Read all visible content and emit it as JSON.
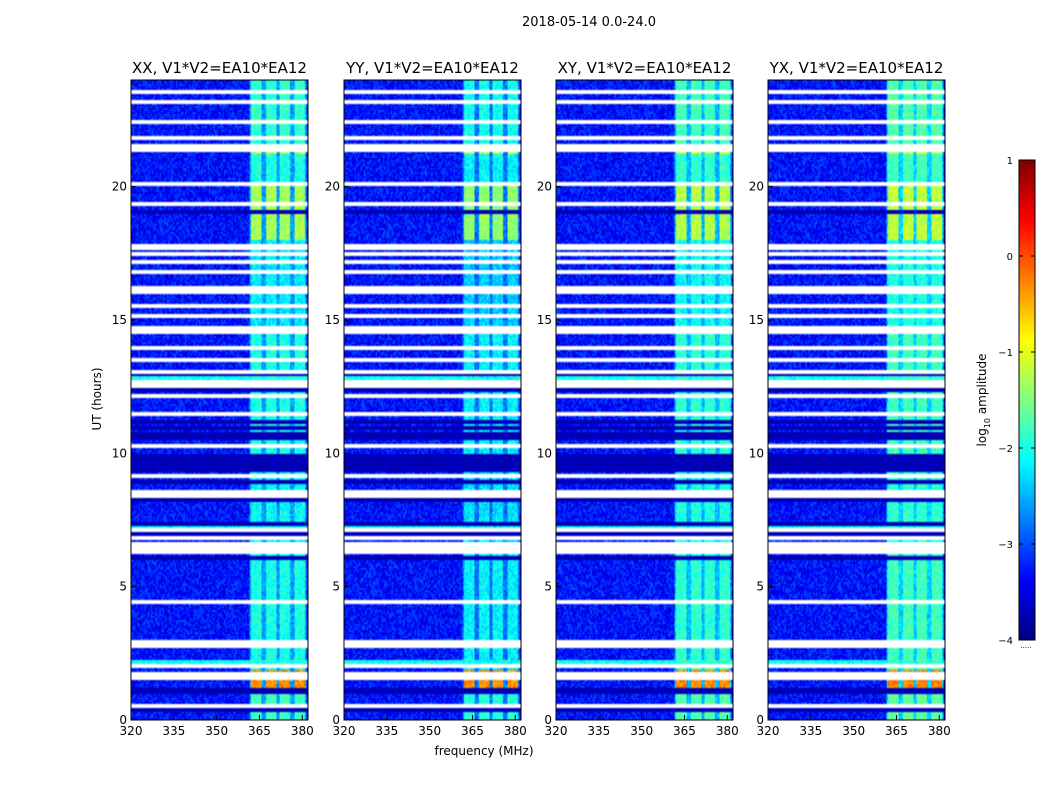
{
  "figure": {
    "suptitle": "2018-05-14 0.0-24.0",
    "xlabel": "frequency (MHz)",
    "ylabel": "UT (hours)",
    "colorbar_label": "log",
    "colorbar_sub": "10",
    "colorbar_label_tail": " amplitude",
    "colorbar_ticks": [
      "1",
      "0",
      "−1",
      "−2",
      "−3",
      "−4"
    ],
    "colorbar_under_marker": "....."
  },
  "chart_data": {
    "type": "heatmap",
    "colormap": "jet",
    "colormap_stops": [
      "#00007f",
      "#0000ff",
      "#007fff",
      "#00ffff",
      "#7fff7f",
      "#ffff00",
      "#ff7f00",
      "#ff0000",
      "#7f0000"
    ],
    "color_range": [
      -4,
      1
    ],
    "background_level": -3.3,
    "xlim": [
      320,
      382
    ],
    "ylim": [
      0,
      24
    ],
    "x_ticks": [
      "320",
      "335",
      "350",
      "365",
      "380"
    ],
    "x_tick_values": [
      320,
      335,
      350,
      365,
      380
    ],
    "y_ticks": [
      "0",
      "5",
      "10",
      "15",
      "20"
    ],
    "y_tick_values": [
      0,
      5,
      10,
      15,
      20
    ],
    "panels": [
      {
        "title": "XX, V1*V2=EA10*EA12",
        "intensity": 1.0
      },
      {
        "title": "YY, V1*V2=EA10*EA12",
        "intensity": 1.08
      },
      {
        "title": "XY, V1*V2=EA10*EA12",
        "intensity": 0.95
      },
      {
        "title": "YX, V1*V2=EA10*EA12",
        "intensity": 0.9
      }
    ],
    "rfi_band_mhz": [
      361.5,
      381.5
    ],
    "rfi_channels_mhz": [
      364,
      369,
      374,
      379
    ],
    "rfi_strength_by_hour": [
      {
        "from": 0.0,
        "to": 1.0,
        "level": -1.8
      },
      {
        "from": 1.0,
        "to": 1.9,
        "level": -0.3
      },
      {
        "from": 1.9,
        "to": 6.2,
        "level": -2.0
      },
      {
        "from": 6.2,
        "to": 9.5,
        "level": -2.1
      },
      {
        "from": 9.5,
        "to": 10.0,
        "level": -1.4
      },
      {
        "from": 10.0,
        "to": 14.5,
        "level": -2.0
      },
      {
        "from": 14.5,
        "to": 14.8,
        "level": -1.4
      },
      {
        "from": 14.8,
        "to": 18.0,
        "level": -2.2
      },
      {
        "from": 18.0,
        "to": 20.2,
        "level": -1.3
      },
      {
        "from": 20.2,
        "to": 21.2,
        "level": -2.0
      },
      {
        "from": 21.2,
        "to": 21.5,
        "level": -1.2
      },
      {
        "from": 21.5,
        "to": 24.0,
        "level": -1.9
      }
    ],
    "flagged_rows_hours": [
      0.55,
      1.55,
      1.72,
      2.02,
      2.75,
      2.92,
      4.4,
      6.3,
      6.45,
      6.6,
      6.85,
      7.1,
      8.4,
      8.55,
      9.15,
      10.3,
      11.5,
      12.15,
      12.5,
      12.7,
      13.05,
      13.5,
      13.95,
      14.55,
      14.7,
      15.15,
      15.5,
      16.05,
      16.2,
      16.8,
      17.2,
      17.5,
      17.7,
      17.8,
      19.35,
      20.1,
      21.35,
      21.55,
      21.85,
      22.4,
      23.2,
      23.55
    ],
    "dark_rows_hours": [
      0.4,
      1.05,
      1.15,
      6.1,
      6.95,
      7.35,
      8.25,
      8.95,
      9.35,
      9.45,
      9.6,
      9.75,
      9.9,
      10.55,
      10.75,
      10.95,
      11.15,
      12.35,
      12.95,
      19.05
    ],
    "bright_rows_hours": [
      2.12,
      2.22,
      6.55,
      7.2,
      12.8
    ]
  }
}
